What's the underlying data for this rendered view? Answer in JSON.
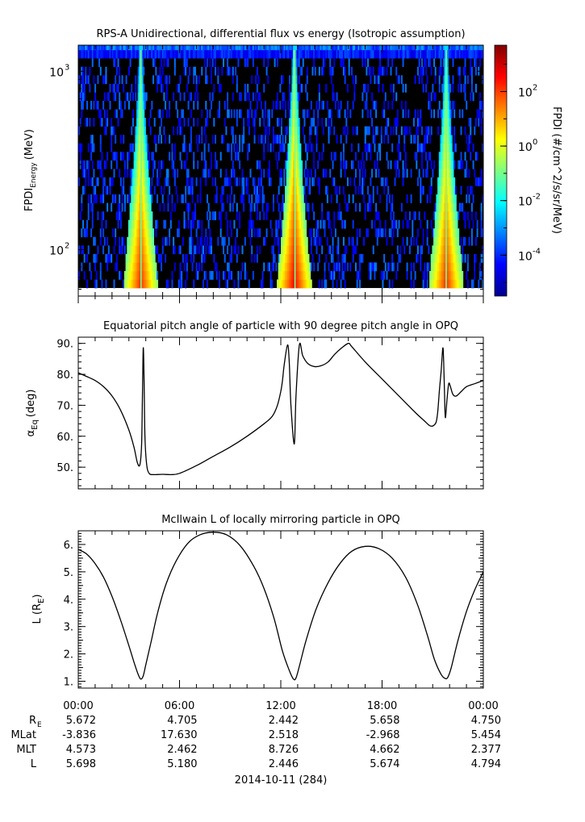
{
  "figure": {
    "date_label": "2014-10-11 (284)",
    "x_ticks": [
      "00:00",
      "06:00",
      "12:00",
      "18:00",
      "00:00"
    ],
    "ephemeris": {
      "row_labels": [
        "R",
        "MLat",
        "MLT",
        "L"
      ],
      "re_subscript": "E",
      "rows": [
        [
          "5.672",
          "4.705",
          "2.442",
          "5.658",
          "4.750"
        ],
        [
          "-3.836",
          "17.630",
          "2.518",
          "-2.968",
          "5.454"
        ],
        [
          "4.573",
          "2.462",
          "8.726",
          "4.662",
          "2.377"
        ],
        [
          "5.698",
          "5.180",
          "2.446",
          "5.674",
          "4.794"
        ]
      ]
    }
  },
  "chart_data": [
    {
      "type": "heatmap",
      "title": "RPS-A Unidirectional, differential flux vs energy (Isotropic assumption)",
      "ylabel_main": "FPDI",
      "ylabel_sub": "Energy",
      "ylabel_unit": "(MeV)",
      "y_scale": "log",
      "ylim": [
        55,
        1400
      ],
      "y_ticks": [
        {
          "base": "10",
          "exp": "2",
          "value": 100
        },
        {
          "base": "10",
          "exp": "3",
          "value": 1000
        }
      ],
      "xlim_hours": [
        0,
        24
      ],
      "colorbar": {
        "label": "FPDI (#/cm^2/s/sr/MeV)",
        "scale": "log",
        "range_log10": [
          -5.5,
          3.7
        ],
        "ticks": [
          {
            "base": "10",
            "exp": "2",
            "log": 2
          },
          {
            "base": "10",
            "exp": "0",
            "log": 0
          },
          {
            "base": "10",
            "exp": "-2",
            "log": -2
          },
          {
            "base": "10",
            "exp": "-4",
            "log": -4
          }
        ],
        "colors": [
          "#00008f",
          "#0000ff",
          "#0080ff",
          "#00ffff",
          "#80ff80",
          "#ffff00",
          "#ff8000",
          "#ff0000",
          "#800000"
        ]
      },
      "belt_passes_hours": [
        3.7,
        12.8,
        21.8
      ],
      "background_color": "#000000"
    },
    {
      "type": "line",
      "title": "Equatorial pitch angle of particle with 90 degree pitch angle in OPQ",
      "ylabel_symbol": "α",
      "ylabel_sub": "Eq",
      "ylabel_unit": "(deg)",
      "ylim": [
        43,
        92
      ],
      "y_ticks": [
        "50.",
        "60.",
        "70.",
        "80.",
        "90."
      ],
      "xlim_hours": [
        0,
        24
      ],
      "x": [
        0,
        0.5,
        1,
        1.5,
        2,
        2.5,
        3,
        3.3,
        3.5,
        3.65,
        3.75,
        3.8,
        3.85,
        3.9,
        3.95,
        4.05,
        4.2,
        4.5,
        5,
        5.5,
        6,
        7,
        8,
        9,
        10,
        11,
        11.5,
        11.8,
        12.0,
        12.1,
        12.2,
        12.4,
        12.5,
        12.6,
        12.8,
        12.9,
        13.1,
        13.3,
        13.6,
        14,
        14.4,
        14.8,
        15.2,
        15.6,
        16,
        16.2,
        17,
        18,
        19,
        20,
        20.5,
        20.8,
        21.0,
        21.2,
        21.3,
        21.4,
        21.5,
        21.6,
        21.65,
        21.7,
        21.75,
        21.85,
        21.95,
        22.05,
        22.2,
        22.4,
        22.7,
        23,
        23.5,
        24
      ],
      "y": [
        80.5,
        79.3,
        78,
        76,
        73,
        68.5,
        62,
        56.5,
        51.5,
        50.8,
        57,
        72,
        88.5,
        78,
        60,
        51,
        48,
        47.6,
        47.7,
        47.6,
        48,
        50.5,
        53.5,
        56.5,
        60,
        64,
        66.5,
        70,
        74.5,
        78,
        83,
        89.5,
        84,
        70,
        57.5,
        73,
        89.5,
        86,
        83.5,
        82.5,
        82.8,
        84,
        86.5,
        88.5,
        90,
        89,
        84,
        78.5,
        73,
        67.5,
        65,
        63.5,
        63.3,
        64.5,
        68,
        75,
        81,
        88.5,
        84,
        74,
        66,
        72,
        77,
        76,
        73.5,
        73,
        74.5,
        76,
        77,
        78
      ]
    },
    {
      "type": "line",
      "title": "McIlwain L of locally mirroring particle in OPQ",
      "ylabel_main": "L (R",
      "ylabel_sub": "E",
      "ylabel_close": ")",
      "ylim": [
        0.75,
        6.5
      ],
      "y_ticks": [
        "1.",
        "1.5",
        "2.",
        "2.5",
        "3.",
        "3.5",
        "4.",
        "4.5",
        "5.",
        "5.5",
        "6."
      ],
      "xlim_hours": [
        0,
        24
      ],
      "x": [
        0,
        0.5,
        1,
        1.5,
        2,
        2.5,
        3,
        3.3,
        3.55,
        3.7,
        3.85,
        4,
        4.3,
        4.7,
        5.2,
        5.8,
        6.5,
        7.2,
        8,
        8.8,
        9.6,
        10.4,
        11,
        11.6,
        12.1,
        12.5,
        12.75,
        12.9,
        13.1,
        13.5,
        14.1,
        14.8,
        15.5,
        16.2,
        17,
        17.8,
        18.6,
        19.4,
        20.1,
        20.7,
        21.1,
        21.5,
        21.75,
        21.9,
        22.1,
        22.5,
        23,
        23.5,
        24
      ],
      "y": [
        5.82,
        5.65,
        5.3,
        4.8,
        4.1,
        3.25,
        2.3,
        1.7,
        1.25,
        1.08,
        1.2,
        1.6,
        2.4,
        3.5,
        4.55,
        5.4,
        6.05,
        6.35,
        6.45,
        6.35,
        5.95,
        5.2,
        4.4,
        3.3,
        2.1,
        1.4,
        1.08,
        1.12,
        1.55,
        2.5,
        3.65,
        4.6,
        5.3,
        5.75,
        5.93,
        5.85,
        5.5,
        4.8,
        3.8,
        2.65,
        1.8,
        1.25,
        1.1,
        1.15,
        1.5,
        2.5,
        3.55,
        4.35,
        5.0
      ]
    }
  ]
}
